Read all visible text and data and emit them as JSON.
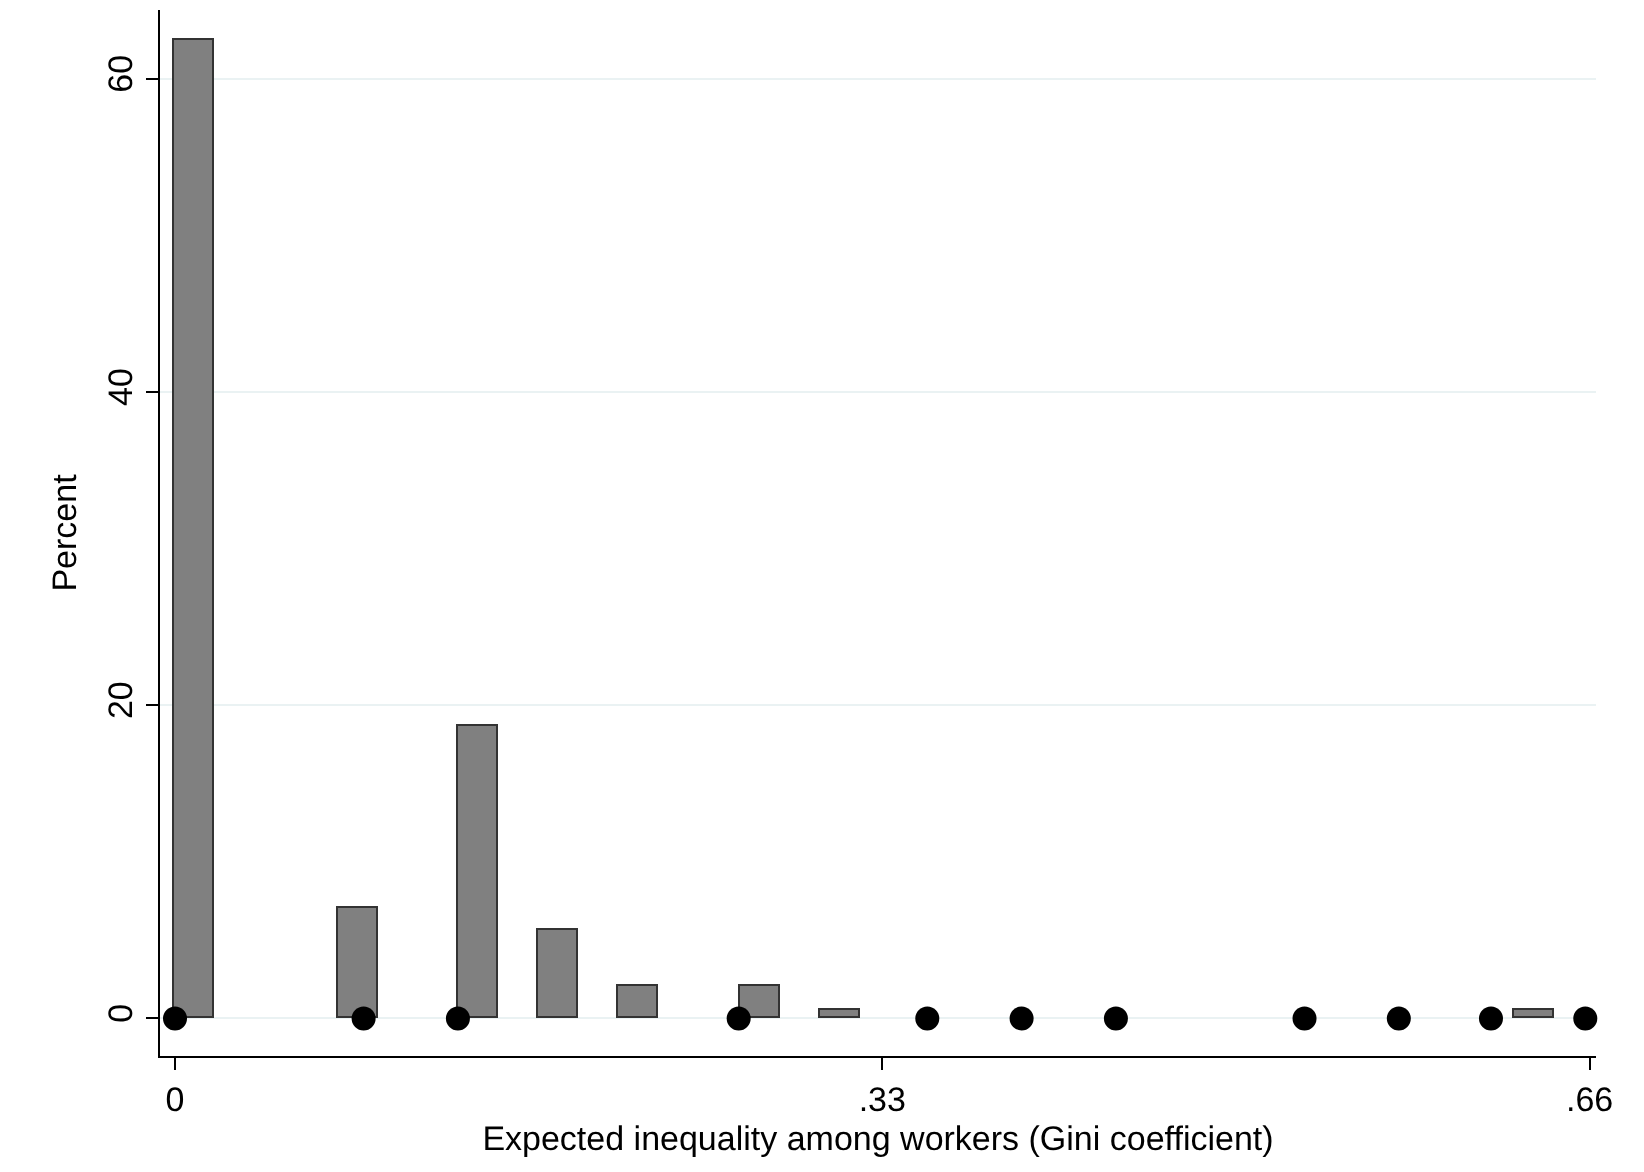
{
  "chart_data": {
    "type": "bar",
    "xlabel": "Expected inequality among workers (Gini coefficient)",
    "ylabel": "Percent",
    "series": [
      {
        "type": "bar",
        "color": "#808080",
        "x": [
          0.009,
          0.085,
          0.141,
          0.179,
          0.216,
          0.273,
          0.31,
          0.634
        ],
        "values": [
          62.5,
          7.1,
          18.7,
          5.7,
          2.1,
          2.1,
          0.6,
          0.6
        ]
      },
      {
        "type": "scatter",
        "color": "#000000",
        "marker": "circle",
        "x": [
          0,
          0.088,
          0.132,
          0.263,
          0.351,
          0.395,
          0.439,
          0.527,
          0.571,
          0.614,
          0.658
        ],
        "values": [
          0,
          0,
          0,
          0,
          0,
          0,
          0,
          0,
          0,
          0,
          0
        ]
      }
    ],
    "xlim": [
      -0.007,
      0.663
    ],
    "xticks": [
      0,
      {
        "value": 0.33,
        "label": ".33"
      },
      {
        "value": 0.66,
        "label": ".66"
      }
    ],
    "ylim": [
      -2.4,
      64.4
    ],
    "yticks": [
      0,
      20,
      40,
      60
    ],
    "grid": "y"
  }
}
